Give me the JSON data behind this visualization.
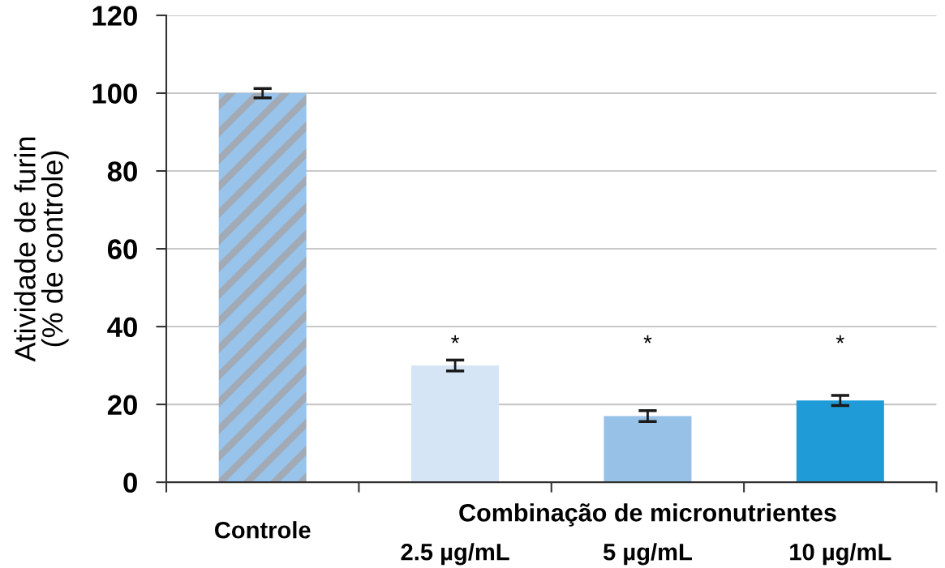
{
  "chart_data": {
    "type": "bar",
    "ylabel": "Atividade de furin\n(% de controle)",
    "categories": [
      "Controle",
      "2.5 µg/mL",
      "5 µg/mL",
      "10 µg/mL"
    ],
    "values": [
      100,
      30,
      17,
      21
    ],
    "colors": [
      "#98c3ea",
      "#d6e5f5",
      "#98c1e8",
      "#1f9bd7"
    ],
    "errors": [
      1.2,
      1.4,
      1.4,
      1.3
    ],
    "ylim": [
      0,
      120
    ],
    "yticks": [
      0,
      20,
      40,
      60,
      80,
      100,
      120
    ],
    "grid": "y",
    "annotations": [
      "Combinação de micronutrientes",
      "*",
      "*",
      "*"
    ]
  }
}
